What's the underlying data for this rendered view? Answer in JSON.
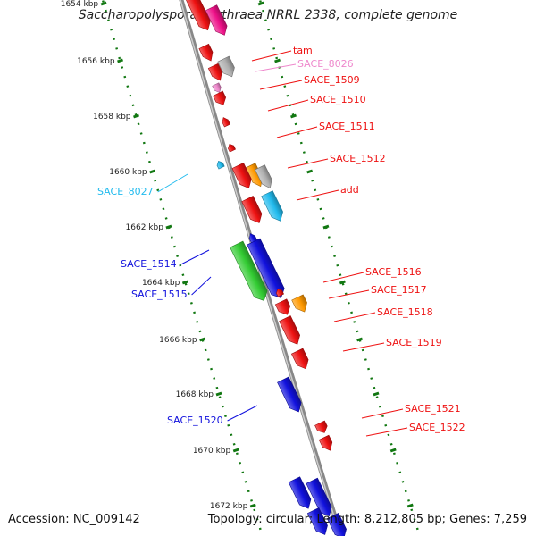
{
  "title": "Saccharopolyspora erythraea NRRL 2338, complete genome",
  "footer": {
    "accession_label": "Accession:",
    "accession": "NC_009142",
    "topology_label": "Topology:",
    "topology": "circular",
    "length_label": "Length:",
    "length": "8,212,805 bp",
    "genes_label": "Genes:",
    "genes": "7,259"
  },
  "colors": {
    "backbone": "#888888",
    "tick": "#117711",
    "red": "#ee1111",
    "blue": "#1111dd",
    "cyan": "#22bbee",
    "green": "#33cc33",
    "orange": "#ff9900",
    "gray": "#b0b0b0",
    "pink": "#ee88cc",
    "magenta": "#ee1188"
  },
  "ticks": [
    "1654 kbp",
    "1656 kbp",
    "1658 kbp",
    "1660 kbp",
    "1662 kbp",
    "1664 kbp",
    "1666 kbp",
    "1668 kbp",
    "1670 kbp",
    "1672 kbp"
  ],
  "genes": [
    {
      "name": "tam",
      "color": "red",
      "side": "right"
    },
    {
      "name": "SACE_8026",
      "color": "pink",
      "side": "right"
    },
    {
      "name": "SACE_1509",
      "color": "red",
      "side": "right"
    },
    {
      "name": "SACE_1510",
      "color": "red",
      "side": "right"
    },
    {
      "name": "SACE_1511",
      "color": "red",
      "side": "right"
    },
    {
      "name": "SACE_1512",
      "color": "red",
      "side": "right"
    },
    {
      "name": "add",
      "color": "red",
      "side": "right"
    },
    {
      "name": "SACE_8027",
      "color": "cyan",
      "side": "left"
    },
    {
      "name": "SACE_1514",
      "color": "blue",
      "side": "left"
    },
    {
      "name": "SACE_1515",
      "color": "blue",
      "side": "left"
    },
    {
      "name": "SACE_1516",
      "color": "red",
      "side": "right"
    },
    {
      "name": "SACE_1517",
      "color": "red",
      "side": "right"
    },
    {
      "name": "SACE_1518",
      "color": "red",
      "side": "right"
    },
    {
      "name": "SACE_1519",
      "color": "red",
      "side": "right"
    },
    {
      "name": "SACE_1520",
      "color": "blue",
      "side": "left"
    },
    {
      "name": "SACE_1521",
      "color": "red",
      "side": "right"
    },
    {
      "name": "SACE_1522",
      "color": "red",
      "side": "right"
    }
  ]
}
